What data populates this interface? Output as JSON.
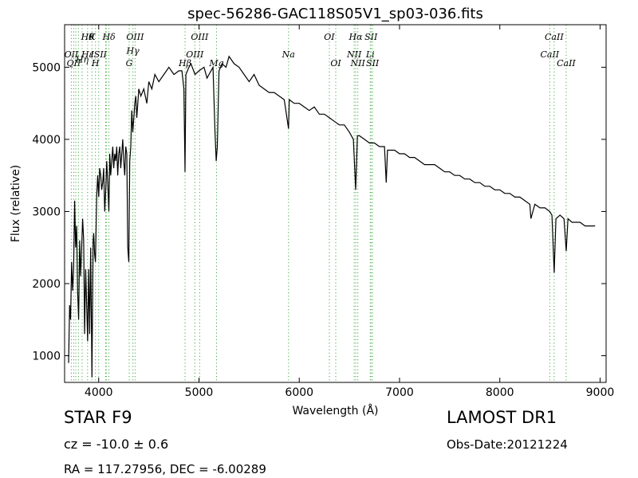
{
  "chart_data": {
    "type": "line",
    "title": "spec-56286-GAC118S05V1_sp03-036.fits",
    "xlabel": "Wavelength (Å)",
    "ylabel": "Flux (relative)",
    "xlim": [
      3660,
      9060
    ],
    "ylim": [
      630,
      5590
    ],
    "xticks": [
      4000,
      5000,
      6000,
      7000,
      8000,
      9000
    ],
    "yticks": [
      1000,
      2000,
      3000,
      4000,
      5000
    ],
    "grid": false,
    "line_color": "#000000",
    "marker_color": "#2ca02c",
    "series": [
      {
        "x": [
          3700,
          3710,
          3720,
          3730,
          3740,
          3750,
          3760,
          3770,
          3780,
          3790,
          3800,
          3810,
          3820,
          3830,
          3840,
          3850,
          3860,
          3870,
          3880,
          3890,
          3900,
          3910,
          3920,
          3933,
          3945,
          3950,
          3960,
          3968,
          3980,
          3990,
          4000,
          4010,
          4020,
          4030,
          4040,
          4050,
          4060,
          4070,
          4080,
          4090,
          4101,
          4110,
          4120,
          4130,
          4140,
          4150,
          4160,
          4170,
          4180,
          4190,
          4200,
          4210,
          4220,
          4230,
          4240,
          4250,
          4260,
          4270,
          4280,
          4290,
          4300,
          4310,
          4320,
          4330,
          4340,
          4350,
          4360,
          4370,
          4380,
          4390,
          4400,
          4420,
          4450,
          4480,
          4500,
          4530,
          4560,
          4600,
          4650,
          4700,
          4750,
          4800,
          4830,
          4850,
          4861,
          4870,
          4900,
          4920,
          4960,
          5000,
          5050,
          5080,
          5100,
          5140,
          5160,
          5172,
          5183,
          5200,
          5230,
          5270,
          5300,
          5350,
          5400,
          5450,
          5500,
          5550,
          5600,
          5650,
          5700,
          5750,
          5800,
          5850,
          5893,
          5900,
          5950,
          6000,
          6050,
          6100,
          6150,
          6200,
          6250,
          6300,
          6350,
          6400,
          6450,
          6500,
          6540,
          6563,
          6580,
          6600,
          6650,
          6700,
          6750,
          6800,
          6850,
          6867,
          6880,
          6950,
          7000,
          7050,
          7100,
          7150,
          7200,
          7250,
          7300,
          7350,
          7400,
          7450,
          7500,
          7550,
          7600,
          7650,
          7700,
          7750,
          7800,
          7850,
          7900,
          7950,
          8000,
          8050,
          8100,
          8150,
          8200,
          8250,
          8300,
          8310,
          8350,
          8400,
          8450,
          8498,
          8520,
          8542,
          8560,
          8600,
          8640,
          8662,
          8680,
          8720,
          8760,
          8800,
          8850,
          8900,
          8950
        ],
        "values": [
          900,
          1700,
          1500,
          2300,
          1900,
          2200,
          3150,
          2500,
          2800,
          1900,
          1500,
          2600,
          2100,
          2500,
          2900,
          2600,
          1300,
          2200,
          1700,
          1200,
          2200,
          1300,
          2500,
          700,
          2600,
          2700,
          2400,
          2300,
          3200,
          3500,
          3200,
          3600,
          3500,
          3300,
          3400,
          3600,
          3000,
          3300,
          3700,
          3400,
          3000,
          3800,
          3500,
          3700,
          3900,
          3600,
          3800,
          3700,
          3900,
          3500,
          3800,
          3900,
          3600,
          3800,
          4000,
          3700,
          3500,
          3900,
          3800,
          2500,
          2300,
          3700,
          3900,
          4400,
          4100,
          4300,
          4500,
          4600,
          4300,
          4500,
          4700,
          4600,
          4700,
          4500,
          4800,
          4700,
          4900,
          4800,
          4900,
          5000,
          4900,
          4950,
          4950,
          4700,
          3550,
          4900,
          5000,
          5050,
          4900,
          4950,
          5000,
          4850,
          4900,
          5000,
          4100,
          3700,
          3900,
          4950,
          5050,
          5000,
          5150,
          5050,
          5000,
          4900,
          4800,
          4900,
          4750,
          4700,
          4650,
          4650,
          4600,
          4550,
          4150,
          4550,
          4500,
          4500,
          4450,
          4400,
          4450,
          4350,
          4350,
          4300,
          4250,
          4200,
          4200,
          4100,
          4000,
          3300,
          4050,
          4050,
          4000,
          3950,
          3950,
          3900,
          3900,
          3400,
          3850,
          3850,
          3800,
          3800,
          3750,
          3750,
          3700,
          3650,
          3650,
          3650,
          3600,
          3550,
          3550,
          3500,
          3500,
          3450,
          3450,
          3400,
          3400,
          3350,
          3350,
          3300,
          3300,
          3250,
          3250,
          3200,
          3200,
          3150,
          3100,
          2900,
          3100,
          3050,
          3050,
          3000,
          2950,
          2150,
          2900,
          2950,
          2900,
          2450,
          2900,
          2850,
          2850,
          2850,
          2800,
          2800,
          2800
        ]
      }
    ],
    "lines": [
      {
        "x": 3727,
        "labels": [
          "OII"
        ],
        "tier": [
          2
        ]
      },
      {
        "x": 3750,
        "labels": [
          "QII"
        ],
        "tier": [
          3
        ]
      },
      {
        "x": 3771,
        "labels": [],
        "tier": []
      },
      {
        "x": 3798,
        "labels": [],
        "tier": []
      },
      {
        "x": 3835,
        "labels": [
          "Hη"
        ],
        "tier": [
          2.6
        ]
      },
      {
        "x": 3889,
        "labels": [
          "Hθ",
          "Hε"
        ],
        "tier": [
          0,
          2
        ]
      },
      {
        "x": 3933,
        "labels": [
          "K"
        ],
        "tier": [
          0
        ]
      },
      {
        "x": 3968,
        "labels": [
          "H"
        ],
        "tier": [
          3
        ]
      },
      {
        "x": 4000,
        "labels": [
          "ISII"
        ],
        "tier": [
          2
        ]
      },
      {
        "x": 4069,
        "labels": [],
        "tier": []
      },
      {
        "x": 4076,
        "labels": [],
        "tier": []
      },
      {
        "x": 4102,
        "labels": [
          "Hδ"
        ],
        "tier": [
          0
        ]
      },
      {
        "x": 4304,
        "labels": [
          "G"
        ],
        "tier": [
          3
        ]
      },
      {
        "x": 4341,
        "labels": [
          "Hγ"
        ],
        "tier": [
          1.6
        ]
      },
      {
        "x": 4363,
        "labels": [
          "OIII"
        ],
        "tier": [
          0
        ]
      },
      {
        "x": 4861,
        "labels": [
          "Hβ"
        ],
        "tier": [
          3
        ]
      },
      {
        "x": 4959,
        "labels": [
          "OIII"
        ],
        "tier": [
          2
        ]
      },
      {
        "x": 5007,
        "labels": [
          "OIII"
        ],
        "tier": [
          0
        ]
      },
      {
        "x": 5175,
        "labels": [
          "Mg"
        ],
        "tier": [
          3
        ]
      },
      {
        "x": 5893,
        "labels": [
          "Na"
        ],
        "tier": [
          2
        ]
      },
      {
        "x": 6300,
        "labels": [
          "OI"
        ],
        "tier": [
          0
        ]
      },
      {
        "x": 6364,
        "labels": [
          "OI"
        ],
        "tier": [
          3
        ]
      },
      {
        "x": 6548,
        "labels": [
          "NII"
        ],
        "tier": [
          2
        ]
      },
      {
        "x": 6563,
        "labels": [
          "Hα"
        ],
        "tier": [
          0
        ]
      },
      {
        "x": 6584,
        "labels": [
          "NII"
        ],
        "tier": [
          3
        ]
      },
      {
        "x": 6708,
        "labels": [
          "Li"
        ],
        "tier": [
          2
        ]
      },
      {
        "x": 6716,
        "labels": [
          "SII"
        ],
        "tier": [
          0
        ]
      },
      {
        "x": 6731,
        "labels": [
          "SII"
        ],
        "tier": [
          3
        ]
      },
      {
        "x": 8498,
        "labels": [
          "CaII"
        ],
        "tier": [
          2
        ]
      },
      {
        "x": 8542,
        "labels": [
          "CaII"
        ],
        "tier": [
          0
        ]
      },
      {
        "x": 8662,
        "labels": [
          "CaII"
        ],
        "tier": [
          3
        ]
      }
    ]
  },
  "info": {
    "object_type": "STAR   F9",
    "survey": "LAMOST DR1",
    "redshift": "cz = -10.0 ± 0.6",
    "obs_date": "Obs-Date:20121224",
    "radec": "RA = 117.27956, DEC = -6.00289"
  }
}
